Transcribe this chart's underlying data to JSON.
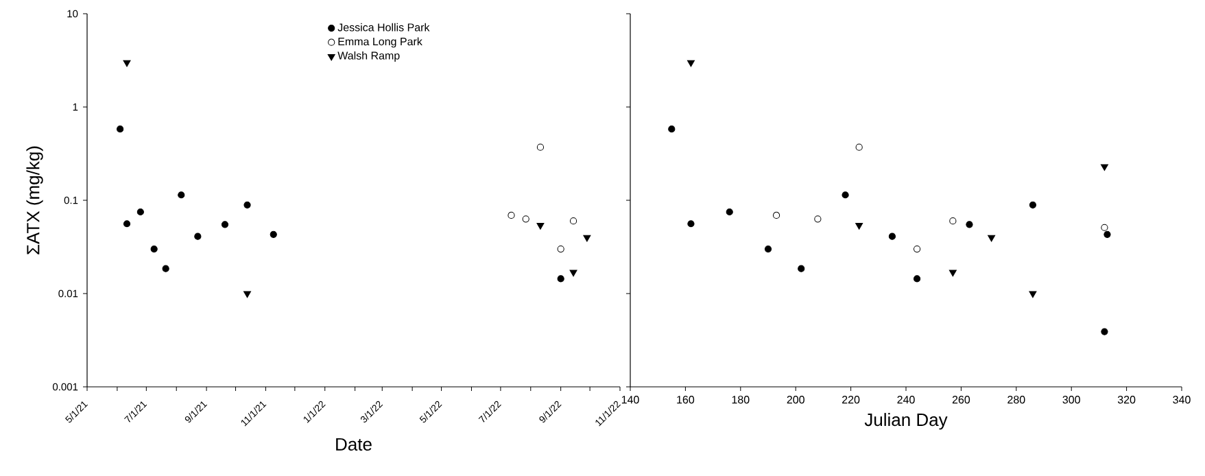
{
  "chart_data": [
    {
      "type": "scatter",
      "xlabel": "Date",
      "ylabel": "ΣATX (mg/kg)",
      "log": "y",
      "ylim": [
        0.001,
        10
      ],
      "yticks": [
        0.001,
        0.01,
        0.1,
        1,
        10
      ],
      "xlim": [
        "2021-05-01",
        "2022-11-01"
      ],
      "xticks": [
        {
          "value": "2021-05-01",
          "label": "5/1/21"
        },
        {
          "value": "2021-06-01",
          "label": null
        },
        {
          "value": "2021-07-01",
          "label": "7/1/21"
        },
        {
          "value": "2021-08-01",
          "label": null
        },
        {
          "value": "2021-09-01",
          "label": "9/1/21"
        },
        {
          "value": "2021-10-01",
          "label": null
        },
        {
          "value": "2021-11-01",
          "label": "11/1/21"
        },
        {
          "value": "2021-12-01",
          "label": null
        },
        {
          "value": "2022-01-01",
          "label": "1/1/22"
        },
        {
          "value": "2022-02-01",
          "label": null
        },
        {
          "value": "2022-03-01",
          "label": "3/1/22"
        },
        {
          "value": "2022-04-01",
          "label": null
        },
        {
          "value": "2022-05-01",
          "label": "5/1/22"
        },
        {
          "value": "2022-06-01",
          "label": null
        },
        {
          "value": "2022-07-01",
          "label": "7/1/22"
        },
        {
          "value": "2022-08-01",
          "label": null
        },
        {
          "value": "2022-09-01",
          "label": "9/1/22"
        },
        {
          "value": "2022-10-01",
          "label": null
        },
        {
          "value": "2022-11-01",
          "label": "11/1/22"
        }
      ],
      "legend": "top",
      "grid": false,
      "series": [
        {
          "name": "Jessica Hollis Park",
          "color": "#000000",
          "marker": "circle",
          "x": [
            "2021-06-04",
            "2021-06-11",
            "2021-06-25",
            "2021-07-09",
            "2021-07-21",
            "2021-08-06",
            "2021-08-23",
            "2021-09-20",
            "2021-10-13",
            "2021-11-09",
            "2022-09-01"
          ],
          "values": [
            0.58,
            0.056,
            0.075,
            0.03,
            0.0185,
            0.114,
            0.041,
            0.055,
            0.089,
            0.043,
            0.0144
          ]
        },
        {
          "name": "Emma Long Park",
          "color": "#ffffff",
          "marker": "circle",
          "x": [
            "2022-07-12",
            "2022-07-27",
            "2022-08-11",
            "2022-09-01",
            "2022-09-14"
          ],
          "values": [
            0.069,
            0.063,
            0.37,
            0.03,
            0.06
          ]
        },
        {
          "name": "Walsh Ramp",
          "color": "#000000",
          "marker": "triangle",
          "x": [
            "2021-06-11",
            "2021-10-13",
            "2022-08-11",
            "2022-09-14",
            "2022-09-28"
          ],
          "values": [
            3.0,
            0.01,
            0.054,
            0.0169,
            0.04
          ]
        }
      ]
    },
    {
      "type": "scatter",
      "xlabel": "Julian Day",
      "log": "y",
      "ylim": [
        0.001,
        10
      ],
      "yticks": [
        0.001,
        0.01,
        0.1,
        1,
        10
      ],
      "xlim": [
        140,
        340
      ],
      "xticks": [
        140,
        160,
        180,
        200,
        220,
        240,
        260,
        280,
        300,
        320,
        340
      ],
      "tick_labels": "x",
      "grid": false,
      "series": [
        {
          "color": "#000000",
          "marker": "circle",
          "x": [
            155,
            162,
            176,
            190,
            202,
            218,
            235,
            263,
            286,
            313,
            244,
            312
          ],
          "values": [
            0.58,
            0.056,
            0.075,
            0.03,
            0.0185,
            0.114,
            0.041,
            0.055,
            0.089,
            0.043,
            0.0144,
            0.0039
          ]
        },
        {
          "color": "#ffffff",
          "marker": "circle",
          "x": [
            193,
            208,
            223,
            244,
            257,
            312
          ],
          "values": [
            0.069,
            0.063,
            0.37,
            0.03,
            0.06,
            0.051
          ]
        },
        {
          "color": "#000000",
          "marker": "triangle",
          "x": [
            162,
            286,
            223,
            257,
            271,
            312
          ],
          "values": [
            3.0,
            0.01,
            0.054,
            0.0169,
            0.04,
            0.23
          ]
        }
      ]
    }
  ]
}
